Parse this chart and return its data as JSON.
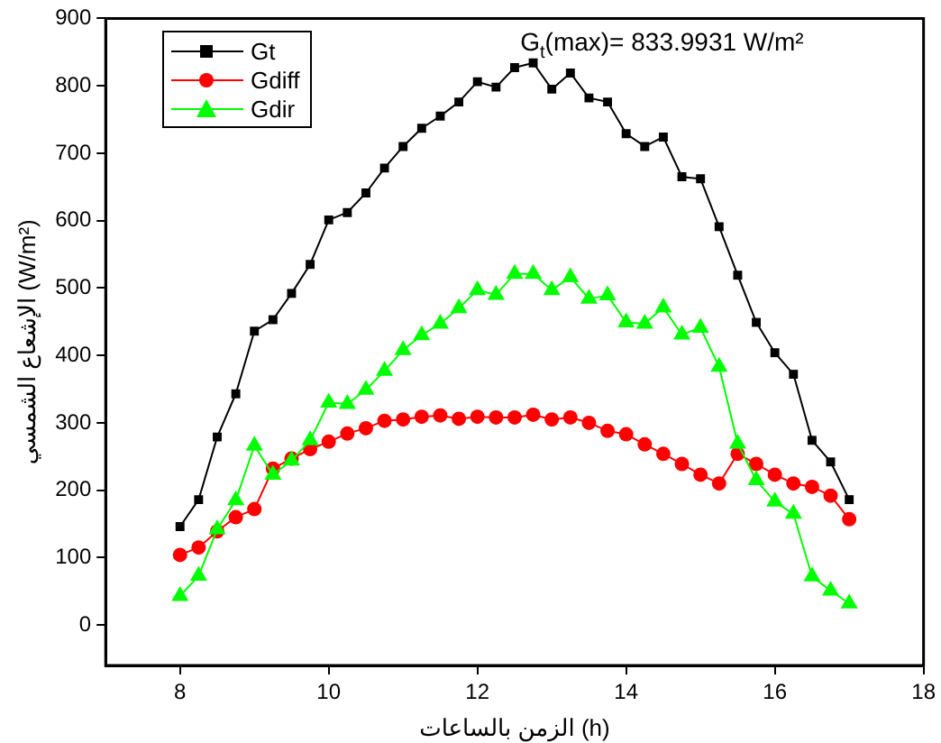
{
  "chart_data": {
    "type": "line",
    "xlabel": "الزمن بالساعات (h)",
    "ylabel": "الإشعاع الشمسي (W/m²)",
    "annotations": [
      "G$_{t}$(max)= 833.9931 W/m²"
    ],
    "xlim": [
      7,
      18
    ],
    "xticks": [
      8,
      10,
      12,
      14,
      16,
      18
    ],
    "ylim": [
      -60,
      900
    ],
    "yticks": [
      0,
      100,
      200,
      300,
      400,
      500,
      600,
      700,
      800,
      900
    ],
    "grid": false,
    "legend": "top left",
    "line_style": "solid",
    "x": [
      8,
      8.25,
      8.5,
      8.75,
      9,
      9.25,
      9.5,
      9.75,
      10,
      10.25,
      10.5,
      10.75,
      11,
      11.25,
      11.5,
      11.75,
      12,
      12.25,
      12.5,
      12.75,
      13,
      13.25,
      13.5,
      13.75,
      14,
      14.25,
      14.5,
      14.75,
      15,
      15.25,
      15.5,
      15.75,
      16,
      16.25,
      16.5,
      16.75,
      17
    ],
    "series": [
      {
        "name": "Gt",
        "color": "#000000",
        "marker": "square",
        "values": [
          146,
          186,
          279,
          343,
          436,
          453,
          492,
          535,
          601,
          612,
          641,
          678,
          710,
          737,
          755,
          776,
          806,
          798,
          827,
          834,
          795,
          819,
          782,
          776,
          729,
          710,
          724,
          665,
          662,
          591,
          519,
          449,
          404,
          372,
          274,
          242,
          186
        ]
      },
      {
        "name": "Gdiff",
        "color": "#ff0000",
        "marker": "circle",
        "values": [
          104,
          115,
          139,
          160,
          172,
          232,
          247,
          261,
          272,
          284,
          292,
          303,
          305,
          309,
          311,
          306,
          309,
          308,
          308,
          312,
          305,
          308,
          300,
          288,
          283,
          268,
          254,
          239,
          223,
          210,
          254,
          239,
          223,
          210,
          205,
          192,
          157
        ]
      },
      {
        "name": "Gdir",
        "color": "#00ff00",
        "marker": "triangle",
        "values": [
          43,
          73,
          142,
          185,
          266,
          223,
          244,
          274,
          330,
          328,
          349,
          377,
          408,
          430,
          447,
          470,
          497,
          490,
          521,
          521,
          497,
          516,
          484,
          489,
          449,
          447,
          471,
          431,
          441,
          383,
          269,
          215,
          183,
          165,
          72,
          51,
          32
        ]
      }
    ]
  }
}
